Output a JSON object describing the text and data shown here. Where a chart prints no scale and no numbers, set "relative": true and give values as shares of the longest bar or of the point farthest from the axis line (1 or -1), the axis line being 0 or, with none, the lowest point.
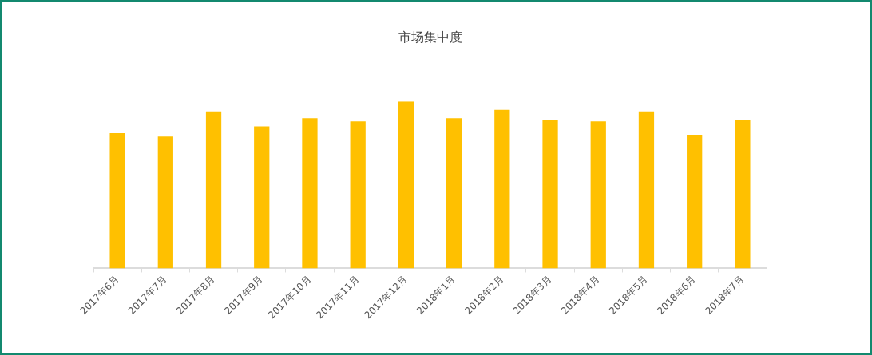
{
  "chart_data": {
    "type": "bar",
    "title": "市场集中度",
    "categories": [
      "2017年6月",
      "2017年7月",
      "2017年8月",
      "2017年9月",
      "2017年10月",
      "2017年11月",
      "2017年12月",
      "2018年1月",
      "2018年2月",
      "2018年3月",
      "2018年4月",
      "2018年5月",
      "2018年6月",
      "2018年7月"
    ],
    "values": [
      0.81,
      0.79,
      0.94,
      0.85,
      0.9,
      0.88,
      1,
      0.9,
      0.95,
      0.89,
      0.88,
      0.94,
      0.8,
      0.89
    ],
    "color": "#ffc000",
    "relative": true
  }
}
